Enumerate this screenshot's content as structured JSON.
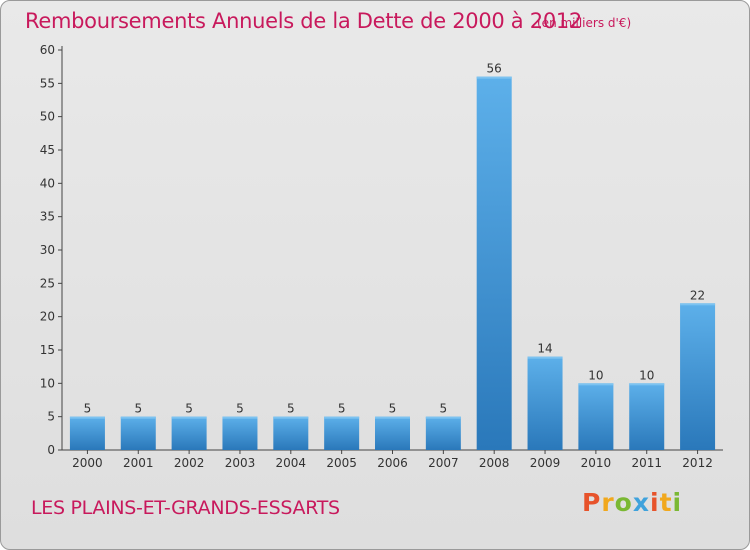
{
  "header": {
    "title": "Remboursements Annuels de la Dette de 2000 à 2012",
    "subtitle": "(en milliers d'€)"
  },
  "footer": {
    "commune": "LES PLAINS-ET-GRANDS-ESSARTS",
    "logo_text": "Proxiti"
  },
  "colors": {
    "title": "#c8195c",
    "bar_light": "#5aaee8",
    "bar_dark": "#2b7bbd"
  },
  "chart_data": {
    "type": "bar",
    "title": "Remboursements Annuels de la Dette de 2000 à 2012",
    "subtitle": "(en milliers d'€)",
    "xlabel": "",
    "ylabel": "",
    "categories": [
      "2000",
      "2001",
      "2002",
      "2003",
      "2004",
      "2005",
      "2006",
      "2007",
      "2008",
      "2009",
      "2010",
      "2011",
      "2012"
    ],
    "values": [
      5,
      5,
      5,
      5,
      5,
      5,
      5,
      5,
      56,
      14,
      10,
      10,
      22
    ],
    "ylim": [
      0,
      60
    ],
    "yticks": [
      0,
      5,
      10,
      15,
      20,
      25,
      30,
      35,
      40,
      45,
      50,
      55,
      60
    ],
    "grid": false,
    "legend": "none",
    "data_labels": true
  }
}
